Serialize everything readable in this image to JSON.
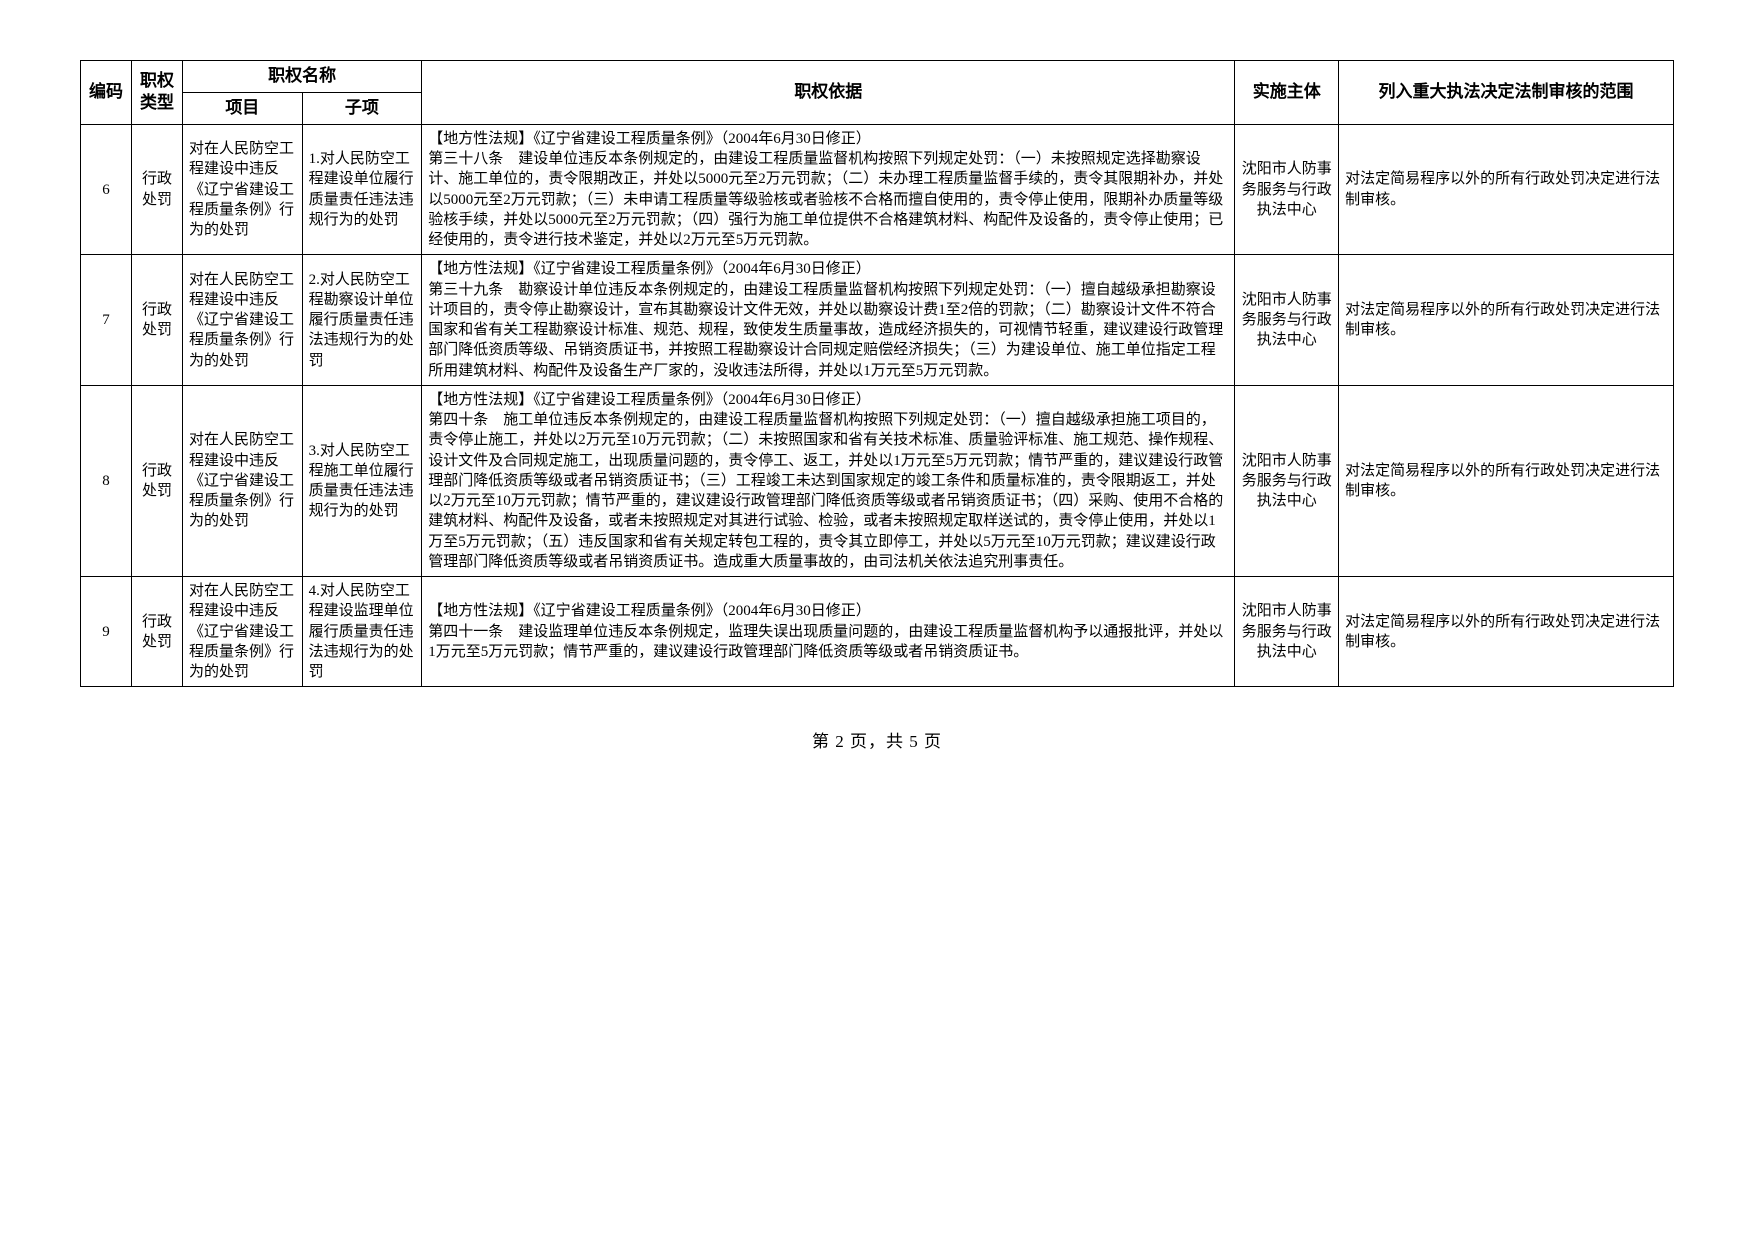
{
  "headers": {
    "code": "编码",
    "type": "职权类型",
    "name": "职权名称",
    "project": "项目",
    "subitem": "子项",
    "basis": "职权依据",
    "impl": "实施主体",
    "scope": "列入重大执法决定法制审核的范围"
  },
  "rows": [
    {
      "code": "6",
      "type": "行政处罚",
      "project": "对在人民防空工程建设中违反《辽宁省建设工程质量条例》行为的处罚",
      "subitem": "1.对人民防空工程建设单位履行质量责任违法违规行为的处罚",
      "basis": "【地方性法规】《辽宁省建设工程质量条例》（2004年6月30日修正）\n第三十八条　建设单位违反本条例规定的，由建设工程质量监督机构按照下列规定处罚：（一）未按照规定选择勘察设计、施工单位的，责令限期改正，并处以5000元至2万元罚款；（二）未办理工程质量监督手续的，责令其限期补办，并处以5000元至2万元罚款；（三）未申请工程质量等级验核或者验核不合格而擅自使用的，责令停止使用，限期补办质量等级验核手续，并处以5000元至2万元罚款；（四）强行为施工单位提供不合格建筑材料、构配件及设备的，责令停止使用；已经使用的，责令进行技术鉴定，并处以2万元至5万元罚款。",
      "impl": "沈阳市人防事务服务与行政执法中心",
      "scope": "对法定简易程序以外的所有行政处罚决定进行法制审核。"
    },
    {
      "code": "7",
      "type": "行政处罚",
      "project": "对在人民防空工程建设中违反《辽宁省建设工程质量条例》行为的处罚",
      "subitem": "2.对人民防空工程勘察设计单位履行质量责任违法违规行为的处罚",
      "basis": "【地方性法规】《辽宁省建设工程质量条例》（2004年6月30日修正）\n第三十九条　勘察设计单位违反本条例规定的，由建设工程质量监督机构按照下列规定处罚：（一）擅自越级承担勘察设计项目的，责令停止勘察设计，宣布其勘察设计文件无效，并处以勘察设计费1至2倍的罚款；（二）勘察设计文件不符合国家和省有关工程勘察设计标准、规范、规程，致使发生质量事故，造成经济损失的，可视情节轻重，建议建设行政管理部门降低资质等级、吊销资质证书，并按照工程勘察设计合同规定赔偿经济损失；（三）为建设单位、施工单位指定工程所用建筑材料、构配件及设备生产厂家的，没收违法所得，并处以1万元至5万元罚款。",
      "impl": "沈阳市人防事务服务与行政执法中心",
      "scope": "对法定简易程序以外的所有行政处罚决定进行法制审核。"
    },
    {
      "code": "8",
      "type": "行政处罚",
      "project": "对在人民防空工程建设中违反《辽宁省建设工程质量条例》行为的处罚",
      "subitem": "3.对人民防空工程施工单位履行质量责任违法违规行为的处罚",
      "basis": "【地方性法规】《辽宁省建设工程质量条例》（2004年6月30日修正）\n第四十条　施工单位违反本条例规定的，由建设工程质量监督机构按照下列规定处罚：（一）擅自越级承担施工项目的，责令停止施工，并处以2万元至10万元罚款；（二）未按照国家和省有关技术标准、质量验评标准、施工规范、操作规程、设计文件及合同规定施工，出现质量问题的，责令停工、返工，并处以1万元至5万元罚款；情节严重的，建议建设行政管理部门降低资质等级或者吊销资质证书；（三）工程竣工未达到国家规定的竣工条件和质量标准的，责令限期返工，并处以2万元至10万元罚款；情节严重的，建议建设行政管理部门降低资质等级或者吊销资质证书；（四）采购、使用不合格的建筑材料、构配件及设备，或者未按照规定对其进行试验、检验，或者未按照规定取样送试的，责令停止使用，并处以1万至5万元罚款；（五）违反国家和省有关规定转包工程的，责令其立即停工，并处以5万元至10万元罚款；建议建设行政管理部门降低资质等级或者吊销资质证书。造成重大质量事故的，由司法机关依法追究刑事责任。",
      "impl": "沈阳市人防事务服务与行政执法中心",
      "scope": "对法定简易程序以外的所有行政处罚决定进行法制审核。"
    },
    {
      "code": "9",
      "type": "行政处罚",
      "project": "对在人民防空工程建设中违反《辽宁省建设工程质量条例》行为的处罚",
      "subitem": "4.对人民防空工程建设监理单位履行质量责任违法违规行为的处罚",
      "basis": "【地方性法规】《辽宁省建设工程质量条例》（2004年6月30日修正）\n第四十一条　建设监理单位违反本条例规定，监理失误出现质量问题的，由建设工程质量监督机构予以通报批评，并处以1万元至5万元罚款；情节严重的，建议建设行政管理部门降低资质等级或者吊销资质证书。",
      "impl": "沈阳市人防事务服务与行政执法中心",
      "scope": "对法定简易程序以外的所有行政处罚决定进行法制审核。"
    }
  ],
  "footer": "第 2 页，共 5 页"
}
